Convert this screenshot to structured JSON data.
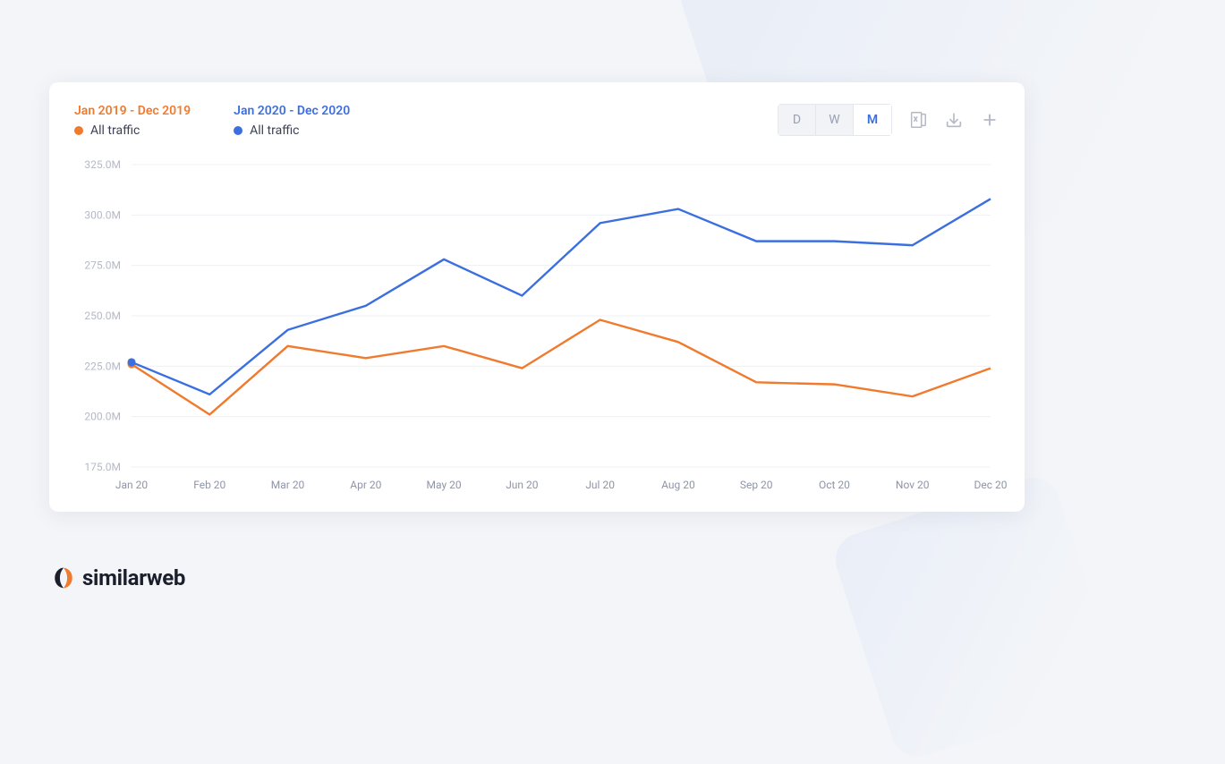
{
  "legend": {
    "series": [
      {
        "title": "Jan 2019 - Dec 2019",
        "sub": "All traffic",
        "color": "#f07a2d"
      },
      {
        "title": "Jan 2020 - Dec 2020",
        "sub": "All traffic",
        "color": "#3b6fe0"
      }
    ]
  },
  "toolbar": {
    "granularity": {
      "options": [
        "D",
        "W",
        "M"
      ],
      "active": "M"
    },
    "icons": [
      "excel-icon",
      "download-icon",
      "plus-icon"
    ]
  },
  "chart": {
    "type": "line",
    "background_color": "#ffffff",
    "grid_color": "#eef0f5",
    "axis_label_color": "#b4b9c6",
    "axis_label_fontsize": 12,
    "line_width": 2.4,
    "marker_radius": 4.5,
    "ylim": [
      175,
      325
    ],
    "ytick_step": 25,
    "ytick_labels": [
      "175.0M",
      "200.0M",
      "225.0M",
      "250.0M",
      "275.0M",
      "300.0M",
      "325.0M"
    ],
    "x_categories": [
      "Jan 20",
      "Feb 20",
      "Mar 20",
      "Apr 20",
      "May 20",
      "Jun 20",
      "Jul 20",
      "Aug 20",
      "Sep 20",
      "Oct 20",
      "Nov 20",
      "Dec 20"
    ],
    "series": [
      {
        "name": "2019",
        "color": "#f07a2d",
        "values": [
          226,
          201,
          235,
          229,
          235,
          224,
          248,
          237,
          217,
          216,
          210,
          224
        ],
        "markers_at": [
          0
        ]
      },
      {
        "name": "2020",
        "color": "#3b6fe0",
        "values": [
          227,
          211,
          243,
          255,
          278,
          260,
          296,
          303,
          287,
          287,
          285,
          308
        ],
        "markers_at": [
          0
        ]
      }
    ]
  },
  "brand": {
    "name": "similarweb"
  }
}
